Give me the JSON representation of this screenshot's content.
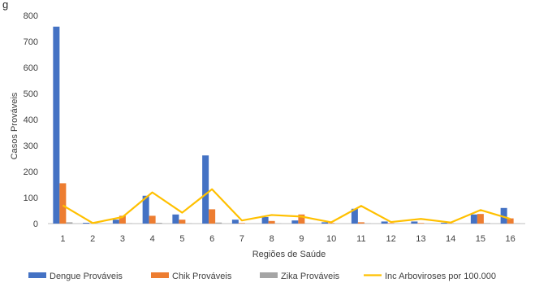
{
  "header": {
    "title": "g"
  },
  "chart_data": {
    "type": "bar",
    "categories": [
      "1",
      "2",
      "3",
      "4",
      "5",
      "6",
      "7",
      "8",
      "9",
      "10",
      "11",
      "12",
      "13",
      "14",
      "15",
      "16"
    ],
    "series": [
      {
        "name": "Dengue Prováveis",
        "type": "bar",
        "color": "#4472C4",
        "values": [
          757,
          3,
          15,
          107,
          35,
          262,
          15,
          25,
          12,
          5,
          57,
          8,
          8,
          3,
          35,
          60
        ]
      },
      {
        "name": "Chik Prováveis",
        "type": "bar",
        "color": "#ED7D31",
        "values": [
          155,
          1,
          30,
          30,
          15,
          55,
          2,
          10,
          35,
          2,
          5,
          2,
          2,
          1,
          37,
          20
        ]
      },
      {
        "name": "Zika Prováveis",
        "type": "bar",
        "color": "#A5A5A5",
        "values": [
          5,
          0,
          1,
          3,
          1,
          4,
          0,
          1,
          1,
          0,
          1,
          0,
          0,
          0,
          2,
          1
        ]
      },
      {
        "name": "Inc Arboviroses por 100.000",
        "type": "line",
        "color": "#FFC000",
        "values": [
          70,
          2,
          25,
          120,
          42,
          132,
          12,
          33,
          27,
          5,
          68,
          6,
          18,
          4,
          52,
          18
        ]
      }
    ],
    "xlabel": "Regiões de Saúde",
    "ylabel": "Casos Prováveis",
    "ylim": [
      0,
      800
    ],
    "yticks": [
      0,
      100,
      200,
      300,
      400,
      500,
      600,
      700,
      800
    ],
    "grid": false,
    "legend": "bottom"
  }
}
